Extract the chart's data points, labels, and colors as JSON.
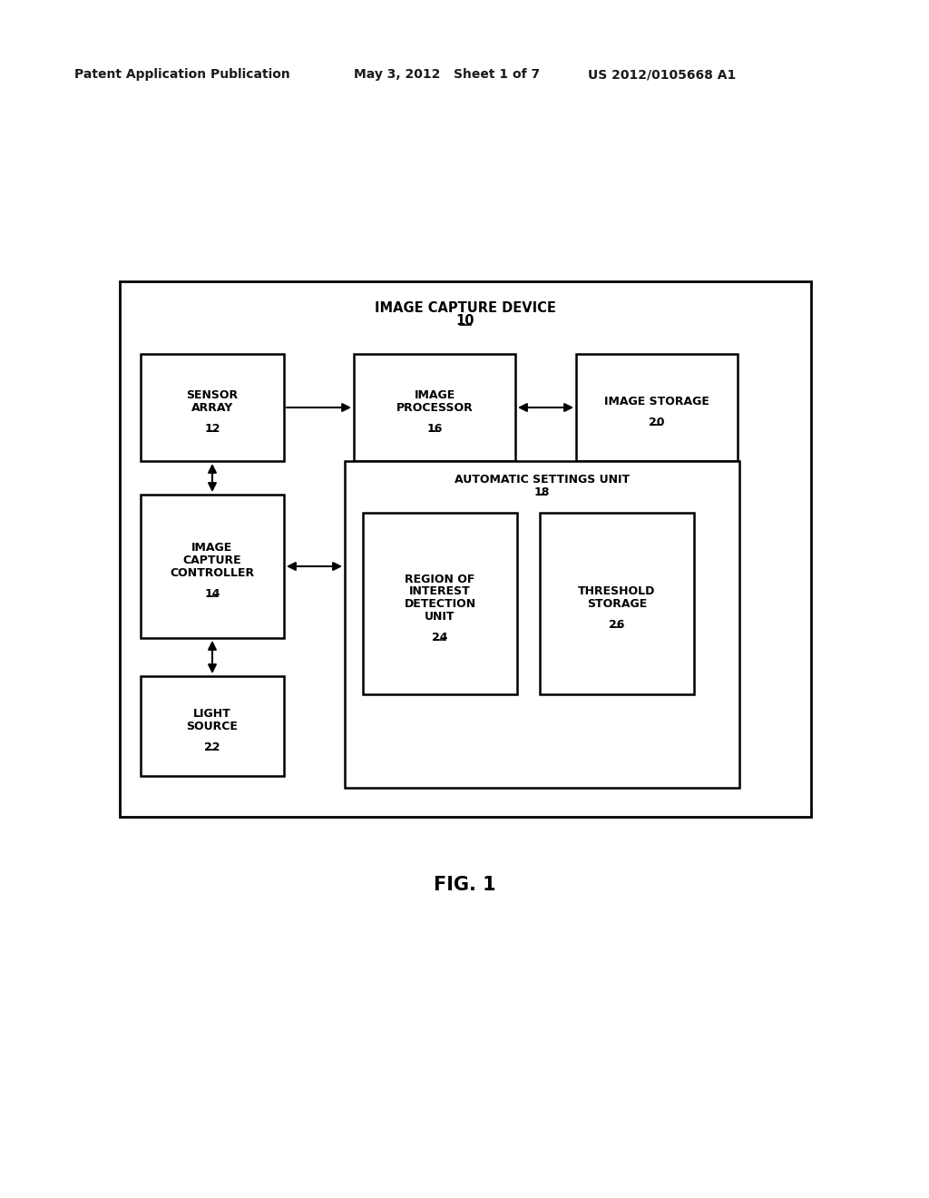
{
  "bg_color": "#ffffff",
  "text_color": "#1a1a1a",
  "header_left": "Patent Application Publication",
  "header_mid": "May 3, 2012   Sheet 1 of 7",
  "header_right": "US 2012/0105668 A1",
  "fig_label": "FIG. 1",
  "outer_title": "IMAGE CAPTURE DEVICE",
  "outer_title_num": "10",
  "boxes": {
    "sensor_array": {
      "label": [
        "SENSOR",
        "ARRAY"
      ],
      "num": "12"
    },
    "image_processor": {
      "label": [
        "IMAGE",
        "PROCESSOR"
      ],
      "num": "16"
    },
    "image_storage": {
      "label": [
        "IMAGE STORAGE"
      ],
      "num": "20"
    },
    "image_capture_ctrl": {
      "label": [
        "IMAGE",
        "CAPTURE",
        "CONTROLLER"
      ],
      "num": "14"
    },
    "light_source": {
      "label": [
        "LIGHT",
        "SOURCE"
      ],
      "num": "22"
    },
    "auto_settings": {
      "label": [
        "AUTOMATIC SETTINGS UNIT"
      ],
      "num": "18"
    },
    "roi_detection": {
      "label": [
        "REGION OF",
        "INTEREST",
        "DETECTION",
        "UNIT"
      ],
      "num": "24"
    },
    "threshold_storage": {
      "label": [
        "THRESHOLD",
        "STORAGE"
      ],
      "num": "26"
    }
  },
  "font_size_header": 10,
  "font_size_box": 9,
  "font_size_outer_title": 10.5,
  "font_size_fig": 15
}
